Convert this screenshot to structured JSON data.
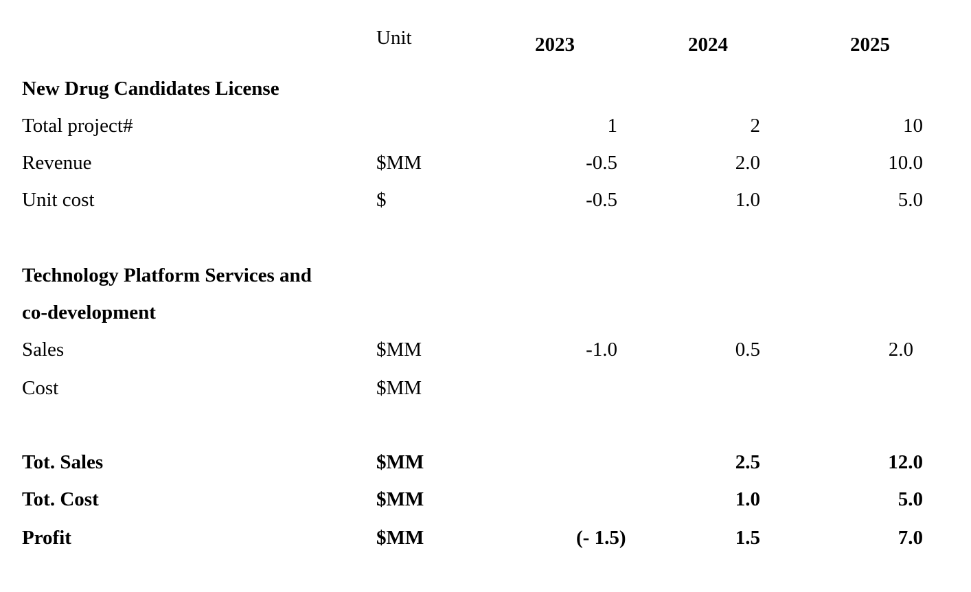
{
  "table": {
    "header": {
      "unit": "Unit",
      "years": [
        "2023",
        "2024",
        "2025"
      ]
    },
    "sections": [
      {
        "title_line1": "New Drug Candidates License",
        "rows": [
          {
            "label": "Total project#",
            "unit": "",
            "values": [
              "1",
              "2",
              "10"
            ]
          },
          {
            "label": "Revenue",
            "unit": "$MM",
            "values": [
              "-0.5",
              "2.0",
              "10.0"
            ]
          },
          {
            "label": "Unit cost",
            "unit": "$",
            "values": [
              "-0.5",
              "1.0",
              "5.0"
            ]
          }
        ]
      },
      {
        "title_line1": "Technology Platform Services and",
        "title_line2": "co-development",
        "rows": [
          {
            "label": "Sales",
            "unit": "$MM",
            "values": [
              "-1.0",
              "0.5",
              "2.0"
            ]
          },
          {
            "label": "Cost",
            "unit": "$MM",
            "values": [
              "",
              "",
              ""
            ]
          }
        ]
      }
    ],
    "totals": [
      {
        "label": "Tot. Sales",
        "unit": "$MM",
        "values": [
          "",
          "2.5",
          "12.0"
        ]
      },
      {
        "label": "Tot. Cost",
        "unit": "$MM",
        "values": [
          "",
          "1.0",
          "5.0"
        ]
      },
      {
        "label": "Profit",
        "unit": "$MM",
        "values": [
          "(- 1.5)",
          "1.5",
          "7.0"
        ]
      }
    ]
  }
}
